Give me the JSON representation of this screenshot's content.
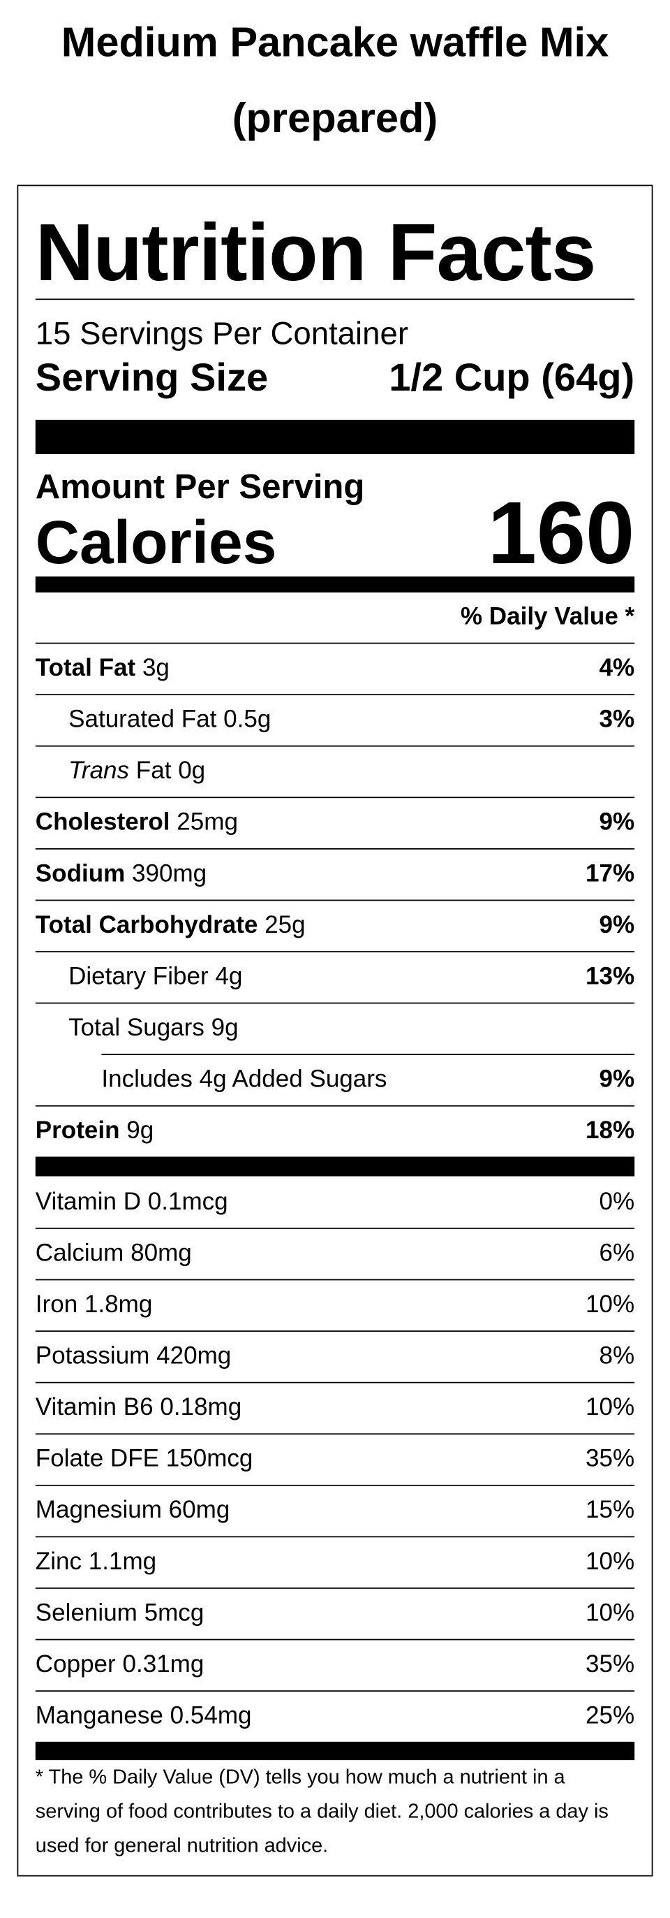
{
  "title": "Medium Pancake waffle Mix (prepared)",
  "label": {
    "heading": "Nutrition Facts",
    "servings_per_container": "15 Servings Per Container",
    "serving_size_label": "Serving Size",
    "serving_size": "1/2 Cup (64g)",
    "amount_per_serving": "Amount Per Serving",
    "calories_label": "Calories",
    "calories": 160,
    "daily_value_header": "% Daily Value *",
    "nutrients": [
      {
        "name": "Total Fat",
        "amount": "3g",
        "dv": "4%",
        "bold": true,
        "indent": 0
      },
      {
        "name": "Saturated Fat",
        "amount": "0.5g",
        "dv": "3%",
        "bold": false,
        "indent": 1
      },
      {
        "name_italic": "Trans",
        "name": "Fat",
        "amount": "0g",
        "bold": false,
        "indent": 1
      },
      {
        "name": "Cholesterol",
        "amount": "25mg",
        "dv": "9%",
        "bold": true,
        "indent": 0
      },
      {
        "name": "Sodium",
        "amount": "390mg",
        "dv": "17%",
        "bold": true,
        "indent": 0
      },
      {
        "name": "Total Carbohydrate",
        "amount": "25g",
        "dv": "9%",
        "bold": true,
        "indent": 0
      },
      {
        "name": "Dietary Fiber",
        "amount": "4g",
        "dv": "13%",
        "bold": false,
        "indent": 1
      },
      {
        "name": "Total Sugars",
        "amount": "9g",
        "bold": false,
        "indent": 1
      },
      {
        "name": "Includes 4g Added Sugars",
        "dv": "9%",
        "bold": false,
        "indent": 2
      },
      {
        "name": "Protein",
        "amount": "9g",
        "dv": "18%",
        "bold": true,
        "indent": 0
      }
    ],
    "vitamins": [
      {
        "name": "Vitamin D",
        "amount": "0.1mcg",
        "dv": "0%"
      },
      {
        "name": "Calcium",
        "amount": "80mg",
        "dv": "6%"
      },
      {
        "name": "Iron",
        "amount": "1.8mg",
        "dv": "10%"
      },
      {
        "name": "Potassium",
        "amount": "420mg",
        "dv": "8%"
      },
      {
        "name": "Vitamin B6",
        "amount": "0.18mg",
        "dv": "10%"
      },
      {
        "name": "Folate DFE",
        "amount": "150mcg",
        "dv": "35%"
      },
      {
        "name": "Magnesium",
        "amount": "60mg",
        "dv": "15%"
      },
      {
        "name": "Zinc",
        "amount": "1.1mg",
        "dv": "10%"
      },
      {
        "name": "Selenium",
        "amount": "5mcg",
        "dv": "10%"
      },
      {
        "name": "Copper",
        "amount": "0.31mg",
        "dv": "35%"
      },
      {
        "name": "Manganese",
        "amount": "0.54mg",
        "dv": "25%"
      }
    ],
    "footnote": "* The % Daily Value (DV) tells you how much a nutrient in a serving of food contributes to a daily diet. 2,000 calories a day is used for general nutrition advice."
  }
}
